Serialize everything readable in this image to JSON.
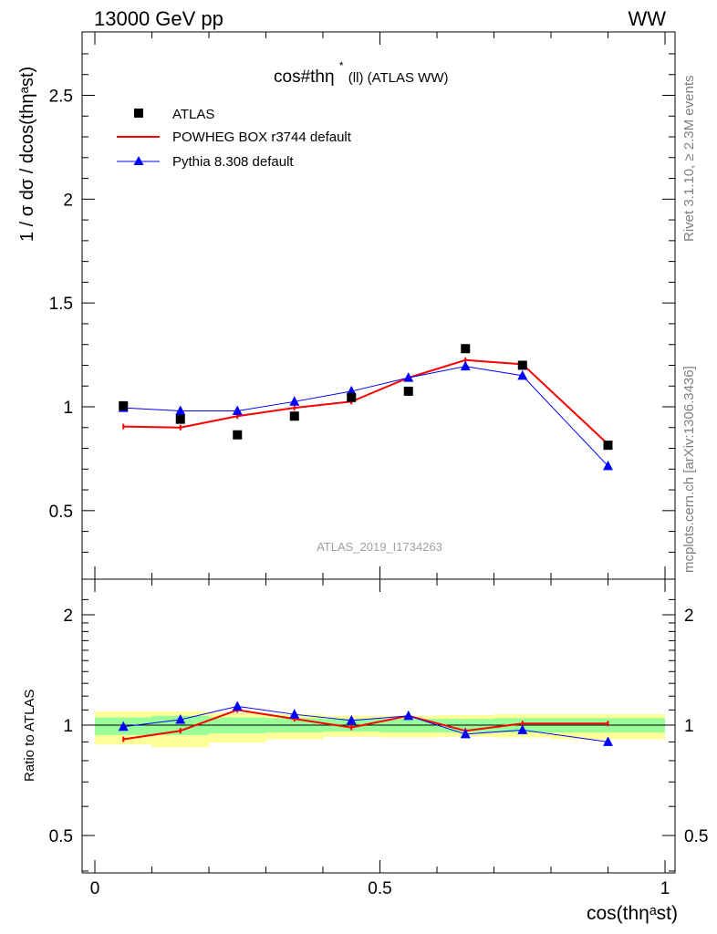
{
  "header": {
    "left": "13000 GeV pp",
    "right": "WW"
  },
  "side_labels": {
    "rivet": "Rivet 3.1.10, ≥ 2.3M events",
    "mcplots": "mcplots.cern.ch [arXiv:1306.3436]"
  },
  "colors": {
    "atlas": "#000000",
    "powheg": "#ff0000",
    "pythia": "#0000ff",
    "band_inner": "#99ff99",
    "band_outer": "#ffff99",
    "watermark": "#a0a0a0"
  },
  "chart_data": [
    {
      "type": "line",
      "title": "cos#thη* (ll) (ATLAS WW)",
      "title_main": "cos#thη",
      "title_sup": "*",
      "title_rest": "(ll) (ATLAS WW)",
      "ylabel": "1 / σ  dσ / dcos(thηᵃst)",
      "watermark": "ATLAS_2019_I1734263",
      "xlim": [
        0,
        1
      ],
      "ylim": [
        0.2,
        2.8
      ],
      "ytick_labels": [
        "0.5",
        "1",
        "1.5",
        "2",
        "2.5"
      ],
      "ytick_values": [
        0.5,
        1,
        1.5,
        2,
        2.5
      ],
      "legend_position": "top-left",
      "series": [
        {
          "name": "ATLAS",
          "style": "markers-square",
          "x": [
            0.05,
            0.15,
            0.25,
            0.35,
            0.45,
            0.55,
            0.65,
            0.75,
            0.9
          ],
          "y": [
            1.005,
            0.94,
            0.865,
            0.955,
            1.045,
            1.075,
            1.28,
            1.2,
            0.815
          ]
        },
        {
          "name": "POWHEG BOX r3744 default",
          "style": "line-red",
          "x": [
            0.05,
            0.15,
            0.25,
            0.35,
            0.45,
            0.55,
            0.65,
            0.75,
            0.9
          ],
          "y": [
            0.905,
            0.9,
            0.955,
            0.995,
            1.025,
            1.14,
            1.225,
            1.205,
            0.82
          ]
        },
        {
          "name": "Pythia 8.308 default",
          "style": "line-triangle-blue",
          "x": [
            0.05,
            0.15,
            0.25,
            0.35,
            0.45,
            0.55,
            0.65,
            0.75,
            0.9
          ],
          "y": [
            0.995,
            0.98,
            0.98,
            1.025,
            1.075,
            1.14,
            1.195,
            1.15,
            0.715
          ]
        }
      ]
    },
    {
      "type": "line",
      "title": "",
      "ylabel": "Ratio to ATLAS",
      "xlabel": "cos(thηᵃst)",
      "xlim": [
        0,
        1
      ],
      "ylim": [
        0.33,
        2.25
      ],
      "xtick_labels": [
        "0",
        "0.5",
        "1"
      ],
      "xtick_values": [
        0,
        0.5,
        1
      ],
      "ytick_labels": [
        "0.5",
        "1",
        "2"
      ],
      "ytick_values": [
        0.5,
        1,
        2
      ],
      "bands": {
        "x_edges": [
          0,
          0.1,
          0.2,
          0.3,
          0.4,
          0.5,
          0.6,
          0.7,
          0.8,
          1.0
        ],
        "outer": [
          [
            0.885,
            1.09
          ],
          [
            0.87,
            1.09
          ],
          [
            0.895,
            1.08
          ],
          [
            0.915,
            1.07
          ],
          [
            0.93,
            1.06
          ],
          [
            0.925,
            1.06
          ],
          [
            0.93,
            1.065
          ],
          [
            0.925,
            1.07
          ],
          [
            0.915,
            1.07
          ]
        ],
        "inner": [
          [
            0.94,
            1.05
          ],
          [
            0.94,
            1.06
          ],
          [
            0.95,
            1.05
          ],
          [
            0.955,
            1.045
          ],
          [
            0.96,
            1.04
          ],
          [
            0.955,
            1.04
          ],
          [
            0.955,
            1.04
          ],
          [
            0.955,
            1.045
          ],
          [
            0.955,
            1.045
          ]
        ]
      },
      "series": [
        {
          "name": "POWHEG BOX r3744 default",
          "style": "line-red",
          "x": [
            0.05,
            0.15,
            0.25,
            0.35,
            0.45,
            0.55,
            0.65,
            0.75,
            0.9
          ],
          "y": [
            0.915,
            0.965,
            1.1,
            1.04,
            0.985,
            1.06,
            0.965,
            1.01,
            1.01
          ]
        },
        {
          "name": "Pythia 8.308 default",
          "style": "line-triangle-blue",
          "x": [
            0.05,
            0.15,
            0.25,
            0.35,
            0.45,
            0.55,
            0.65,
            0.75,
            0.9
          ],
          "y": [
            0.99,
            1.035,
            1.125,
            1.07,
            1.03,
            1.06,
            0.945,
            0.97,
            0.9
          ]
        }
      ]
    }
  ]
}
